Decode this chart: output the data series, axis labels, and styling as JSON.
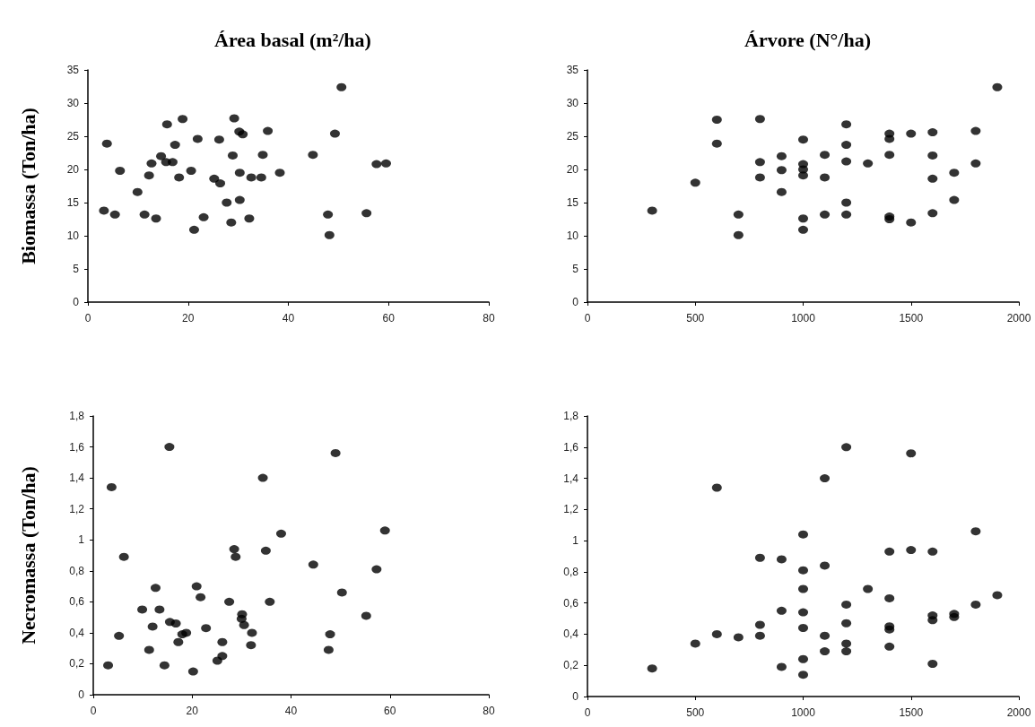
{
  "chart_data": [
    {
      "type": "scatter",
      "title": "Área basal (m²/ha)",
      "ylabel": "Biomassa (Ton/ha)",
      "marker": "circle",
      "grid": false,
      "xlim": [
        0,
        80
      ],
      "xticks": [
        0,
        20,
        40,
        60,
        80
      ],
      "ylim": [
        0,
        35
      ],
      "yticks": [
        0,
        5,
        10,
        15,
        20,
        25,
        30,
        35
      ],
      "series": [
        {
          "color": "#000000",
          "x": [
            3.2,
            3.8,
            5.4,
            6.4,
            9.9,
            11.3,
            12.2,
            12.7,
            13.6,
            14.6,
            15.6,
            15.8,
            16.9,
            17.4,
            18.2,
            18.9,
            20.6,
            21.2,
            21.9,
            23.1,
            25.2,
            26.2,
            26.4,
            27.7,
            28.6,
            28.9,
            29.2,
            30.2,
            30.3,
            30.3,
            30.9,
            32.2,
            32.6,
            34.6,
            34.9,
            35.9,
            38.3,
            44.9,
            47.9,
            48.2,
            49.3,
            50.6,
            55.6,
            57.6,
            59.5
          ],
          "values": [
            13.8,
            23.9,
            13.2,
            19.8,
            16.6,
            13.2,
            19.1,
            20.9,
            12.6,
            22.0,
            21.1,
            26.8,
            21.1,
            23.7,
            18.8,
            27.6,
            19.8,
            10.9,
            24.6,
            12.8,
            18.6,
            24.5,
            17.9,
            15.0,
            12.0,
            22.1,
            27.7,
            25.7,
            19.5,
            15.4,
            25.3,
            12.6,
            18.8,
            18.8,
            22.2,
            25.8,
            19.5,
            22.2,
            13.2,
            10.1,
            25.4,
            32.4,
            13.4,
            20.8,
            20.9
          ]
        }
      ]
    },
    {
      "type": "scatter",
      "title": "Árvore (N°/ha)",
      "marker": "circle",
      "grid": false,
      "xlim": [
        0,
        2000
      ],
      "xticks": [
        0,
        500,
        1000,
        1500,
        2000
      ],
      "ylim": [
        0,
        35
      ],
      "yticks": [
        0,
        5,
        10,
        15,
        20,
        25,
        30,
        35
      ],
      "series": [
        {
          "color": "#000000",
          "x": [
            300,
            500,
            600,
            600,
            700,
            700,
            800,
            800,
            800,
            900,
            900,
            900,
            1000,
            1000,
            1000,
            1000,
            1000,
            1000,
            1100,
            1100,
            1100,
            1200,
            1200,
            1200,
            1200,
            1200,
            1300,
            1400,
            1400,
            1400,
            1400,
            1400,
            1500,
            1500,
            1600,
            1600,
            1600,
            1600,
            1700,
            1700,
            1800,
            1800,
            1900
          ],
          "values": [
            13.8,
            18.0,
            27.5,
            23.9,
            13.2,
            10.1,
            27.6,
            21.1,
            18.8,
            22.0,
            19.9,
            16.6,
            24.5,
            20.8,
            20.0,
            19.1,
            12.6,
            10.9,
            22.2,
            18.8,
            13.2,
            26.8,
            23.7,
            21.2,
            15.0,
            13.2,
            20.9,
            25.4,
            24.6,
            22.2,
            12.9,
            12.5,
            25.4,
            12.0,
            25.6,
            22.1,
            18.6,
            13.4,
            19.5,
            15.4,
            25.8,
            20.9,
            32.4
          ]
        }
      ]
    },
    {
      "type": "scatter",
      "ylabel": "Necromassa (Ton/ha)",
      "marker": "circle",
      "grid": false,
      "xlim": [
        0,
        80
      ],
      "xticks": [
        0,
        20,
        40,
        60,
        80
      ],
      "ylim": [
        0,
        1.8
      ],
      "yticks": [
        0,
        {
          "value": 0.2,
          "label": "0,2"
        },
        {
          "value": 0.4,
          "label": "0,4"
        },
        {
          "value": 0.6,
          "label": "0,6"
        },
        {
          "value": 0.8,
          "label": "0,8"
        },
        1,
        {
          "value": 1.2,
          "label": "1,2"
        },
        {
          "value": 1.4,
          "label": "1,4"
        },
        {
          "value": 1.6,
          "label": "1,6"
        },
        {
          "value": 1.8,
          "label": "1,8"
        }
      ],
      "series": [
        {
          "color": "#000000",
          "x": [
            3.0,
            3.7,
            5.2,
            6.2,
            9.9,
            11.3,
            12.0,
            12.6,
            13.4,
            14.4,
            15.4,
            15.5,
            16.7,
            17.2,
            18.0,
            18.8,
            20.2,
            20.9,
            21.7,
            22.8,
            25.1,
            26.1,
            26.1,
            27.5,
            28.5,
            28.8,
            30.0,
            30.1,
            30.5,
            32.1,
            31.9,
            34.3,
            34.9,
            35.7,
            38.0,
            44.5,
            47.6,
            47.9,
            49.0,
            50.3,
            55.2,
            57.3,
            59.0
          ],
          "values": [
            0.19,
            1.34,
            0.38,
            0.89,
            0.55,
            0.29,
            0.44,
            0.69,
            0.55,
            0.19,
            1.6,
            0.47,
            0.46,
            0.34,
            0.39,
            0.4,
            0.15,
            0.7,
            0.63,
            0.43,
            0.22,
            0.25,
            0.34,
            0.6,
            0.94,
            0.89,
            0.49,
            0.52,
            0.45,
            0.4,
            0.32,
            1.4,
            0.93,
            0.6,
            1.04,
            0.84,
            0.29,
            0.39,
            1.56,
            0.66,
            0.51,
            0.81,
            1.06
          ]
        }
      ]
    },
    {
      "type": "scatter",
      "marker": "circle",
      "grid": false,
      "xlim": [
        0,
        2000
      ],
      "xticks": [
        0,
        500,
        1000,
        1500,
        2000
      ],
      "ylim": [
        0,
        1.8
      ],
      "yticks": [
        0,
        {
          "value": 0.2,
          "label": "0,2"
        },
        {
          "value": 0.4,
          "label": "0,4"
        },
        {
          "value": 0.6,
          "label": "0,6"
        },
        {
          "value": 0.8,
          "label": "0,8"
        },
        1,
        {
          "value": 1.2,
          "label": "1,2"
        },
        {
          "value": 1.4,
          "label": "1,4"
        },
        {
          "value": 1.6,
          "label": "1,6"
        },
        {
          "value": 1.8,
          "label": "1,8"
        }
      ],
      "series": [
        {
          "color": "#000000",
          "x": [
            300,
            500,
            600,
            600,
            700,
            800,
            800,
            800,
            900,
            900,
            900,
            1000,
            1000,
            1000,
            1000,
            1000,
            1000,
            1000,
            1100,
            1100,
            1100,
            1100,
            1200,
            1200,
            1200,
            1200,
            1200,
            1300,
            1400,
            1400,
            1400,
            1400,
            1400,
            1500,
            1500,
            1600,
            1600,
            1600,
            1600,
            1700,
            1700,
            1800,
            1800,
            1900
          ],
          "values": [
            0.18,
            0.34,
            1.34,
            0.4,
            0.38,
            0.89,
            0.46,
            0.39,
            0.88,
            0.55,
            0.19,
            1.04,
            0.81,
            0.69,
            0.54,
            0.44,
            0.24,
            0.14,
            1.4,
            0.84,
            0.39,
            0.29,
            1.6,
            0.59,
            0.47,
            0.34,
            0.29,
            0.69,
            0.63,
            0.93,
            0.45,
            0.43,
            0.32,
            1.56,
            0.94,
            0.93,
            0.52,
            0.49,
            0.21,
            0.53,
            0.51,
            1.06,
            0.59,
            0.65
          ]
        }
      ]
    }
  ]
}
